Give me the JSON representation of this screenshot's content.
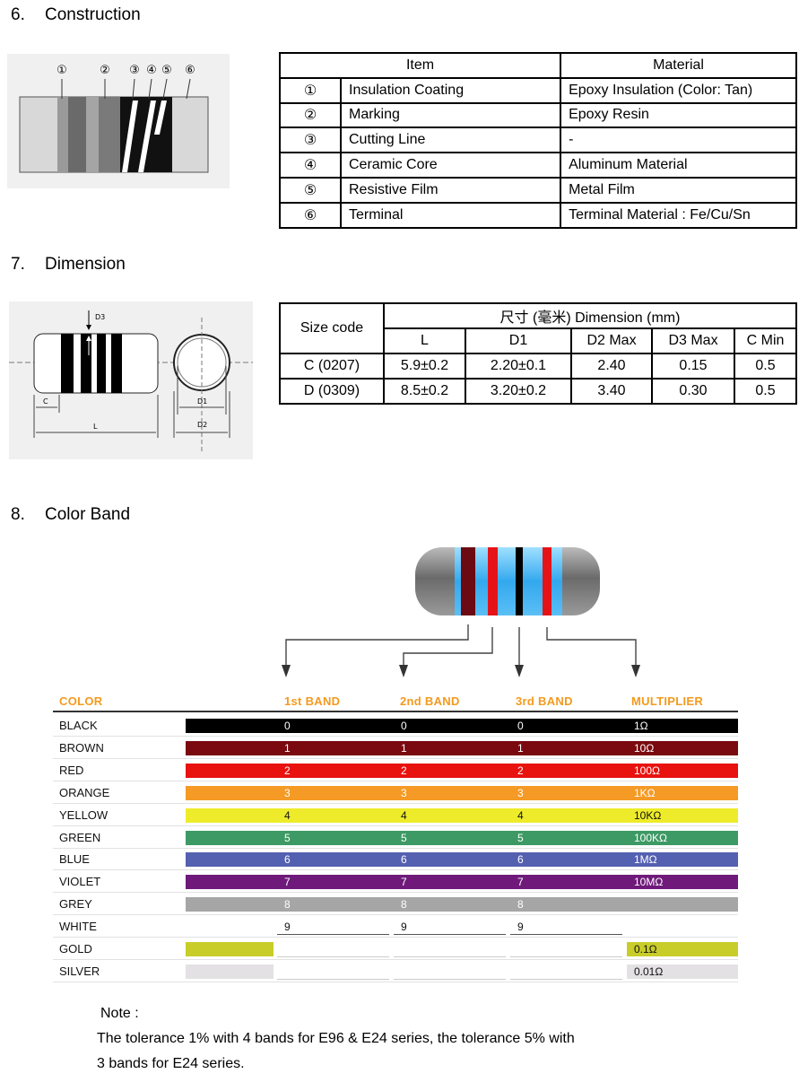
{
  "sections": {
    "construction": {
      "number": "6.",
      "title": "Construction"
    },
    "dimension": {
      "number": "7.",
      "title": "Dimension"
    },
    "color_band": {
      "number": "8.",
      "title": "Color Band"
    }
  },
  "construction_diagram": {
    "callouts": [
      "①",
      "②",
      "③",
      "④",
      "⑤",
      "⑥"
    ]
  },
  "construction_table": {
    "headers": {
      "item": "Item",
      "material": "Material"
    },
    "rows": [
      {
        "no": "①",
        "item": "Insulation Coating",
        "material": "Epoxy Insulation (Color: Tan)"
      },
      {
        "no": "②",
        "item": "Marking",
        "material": "Epoxy Resin"
      },
      {
        "no": "③",
        "item": "Cutting Line",
        "material": "-"
      },
      {
        "no": "④",
        "item": "Ceramic Core",
        "material": "Aluminum Material"
      },
      {
        "no": "⑤",
        "item": "Resistive Film",
        "material": "Metal Film"
      },
      {
        "no": "⑥",
        "item": "Terminal",
        "material": "Terminal Material : Fe/Cu/Sn"
      }
    ]
  },
  "dimension_diagram": {
    "labels": {
      "d3": "D3",
      "c": "C",
      "l": "L",
      "d1": "D1",
      "d2": "D2"
    }
  },
  "dimension_table": {
    "size_code_header": "Size code",
    "group_header": "尺寸 (毫米) Dimension (mm)",
    "columns": [
      "L",
      "D1",
      "D2 Max",
      "D3 Max",
      "C Min"
    ],
    "rows": [
      {
        "code": "C (0207)",
        "values": [
          "5.9±0.2",
          "2.20±0.1",
          "2.40",
          "0.15",
          "0.5"
        ]
      },
      {
        "code": "D (0309)",
        "values": [
          "8.5±0.2",
          "3.20±0.2",
          "3.40",
          "0.30",
          "0.5"
        ]
      }
    ]
  },
  "color_chart": {
    "headers": {
      "color": "COLOR",
      "band1": "1st BAND",
      "band2": "2nd BAND",
      "band3": "3rd BAND",
      "multiplier": "MULTIPLIER"
    },
    "header_color": "#f39a1e",
    "rows": [
      {
        "name": "BLACK",
        "hex": "#000000",
        "b1": "0",
        "b2": "0",
        "b3": "0",
        "mult": "1Ω",
        "txt": "light"
      },
      {
        "name": "BROWN",
        "hex": "#7a0a10",
        "b1": "1",
        "b2": "1",
        "b3": "1",
        "mult": "10Ω",
        "txt": "light"
      },
      {
        "name": "RED",
        "hex": "#e8120f",
        "b1": "2",
        "b2": "2",
        "b3": "2",
        "mult": "100Ω",
        "txt": "light"
      },
      {
        "name": "ORANGE",
        "hex": "#f59a25",
        "b1": "3",
        "b2": "3",
        "b3": "3",
        "mult": "1KΩ",
        "txt": "light"
      },
      {
        "name": "YELLOW",
        "hex": "#eeec2a",
        "b1": "4",
        "b2": "4",
        "b3": "4",
        "mult": "10KΩ",
        "txt": "dark"
      },
      {
        "name": "GREEN",
        "hex": "#3d9a64",
        "b1": "5",
        "b2": "5",
        "b3": "5",
        "mult": "100KΩ",
        "txt": "light"
      },
      {
        "name": "BLUE",
        "hex": "#5460b0",
        "b1": "6",
        "b2": "6",
        "b3": "6",
        "mult": "1MΩ",
        "txt": "light"
      },
      {
        "name": "VIOLET",
        "hex": "#6f1a7a",
        "b1": "7",
        "b2": "7",
        "b3": "7",
        "mult": "10MΩ",
        "txt": "light"
      },
      {
        "name": "GREY",
        "hex": "#a6a6a6",
        "b1": "8",
        "b2": "8",
        "b3": "8",
        "mult": "",
        "txt": "light"
      },
      {
        "name": "WHITE",
        "hex": "#ffffff",
        "b1": "9",
        "b2": "9",
        "b3": "9",
        "mult": "",
        "txt": "dark"
      },
      {
        "name": "GOLD",
        "hex": "#c8cd2a",
        "b1": "",
        "b2": "",
        "b3": "",
        "mult": "0.1Ω",
        "txt": "dark"
      },
      {
        "name": "SILVER",
        "hex": "#e3e1e3",
        "b1": "",
        "b2": "",
        "b3": "",
        "mult": "0.01Ω",
        "txt": "dark"
      }
    ]
  },
  "note": {
    "title": "Note :",
    "line1": "The tolerance 1% with 4 bands for E96 & E24 series, the tolerance 5% with",
    "line2": "3 bands for E24 series."
  }
}
